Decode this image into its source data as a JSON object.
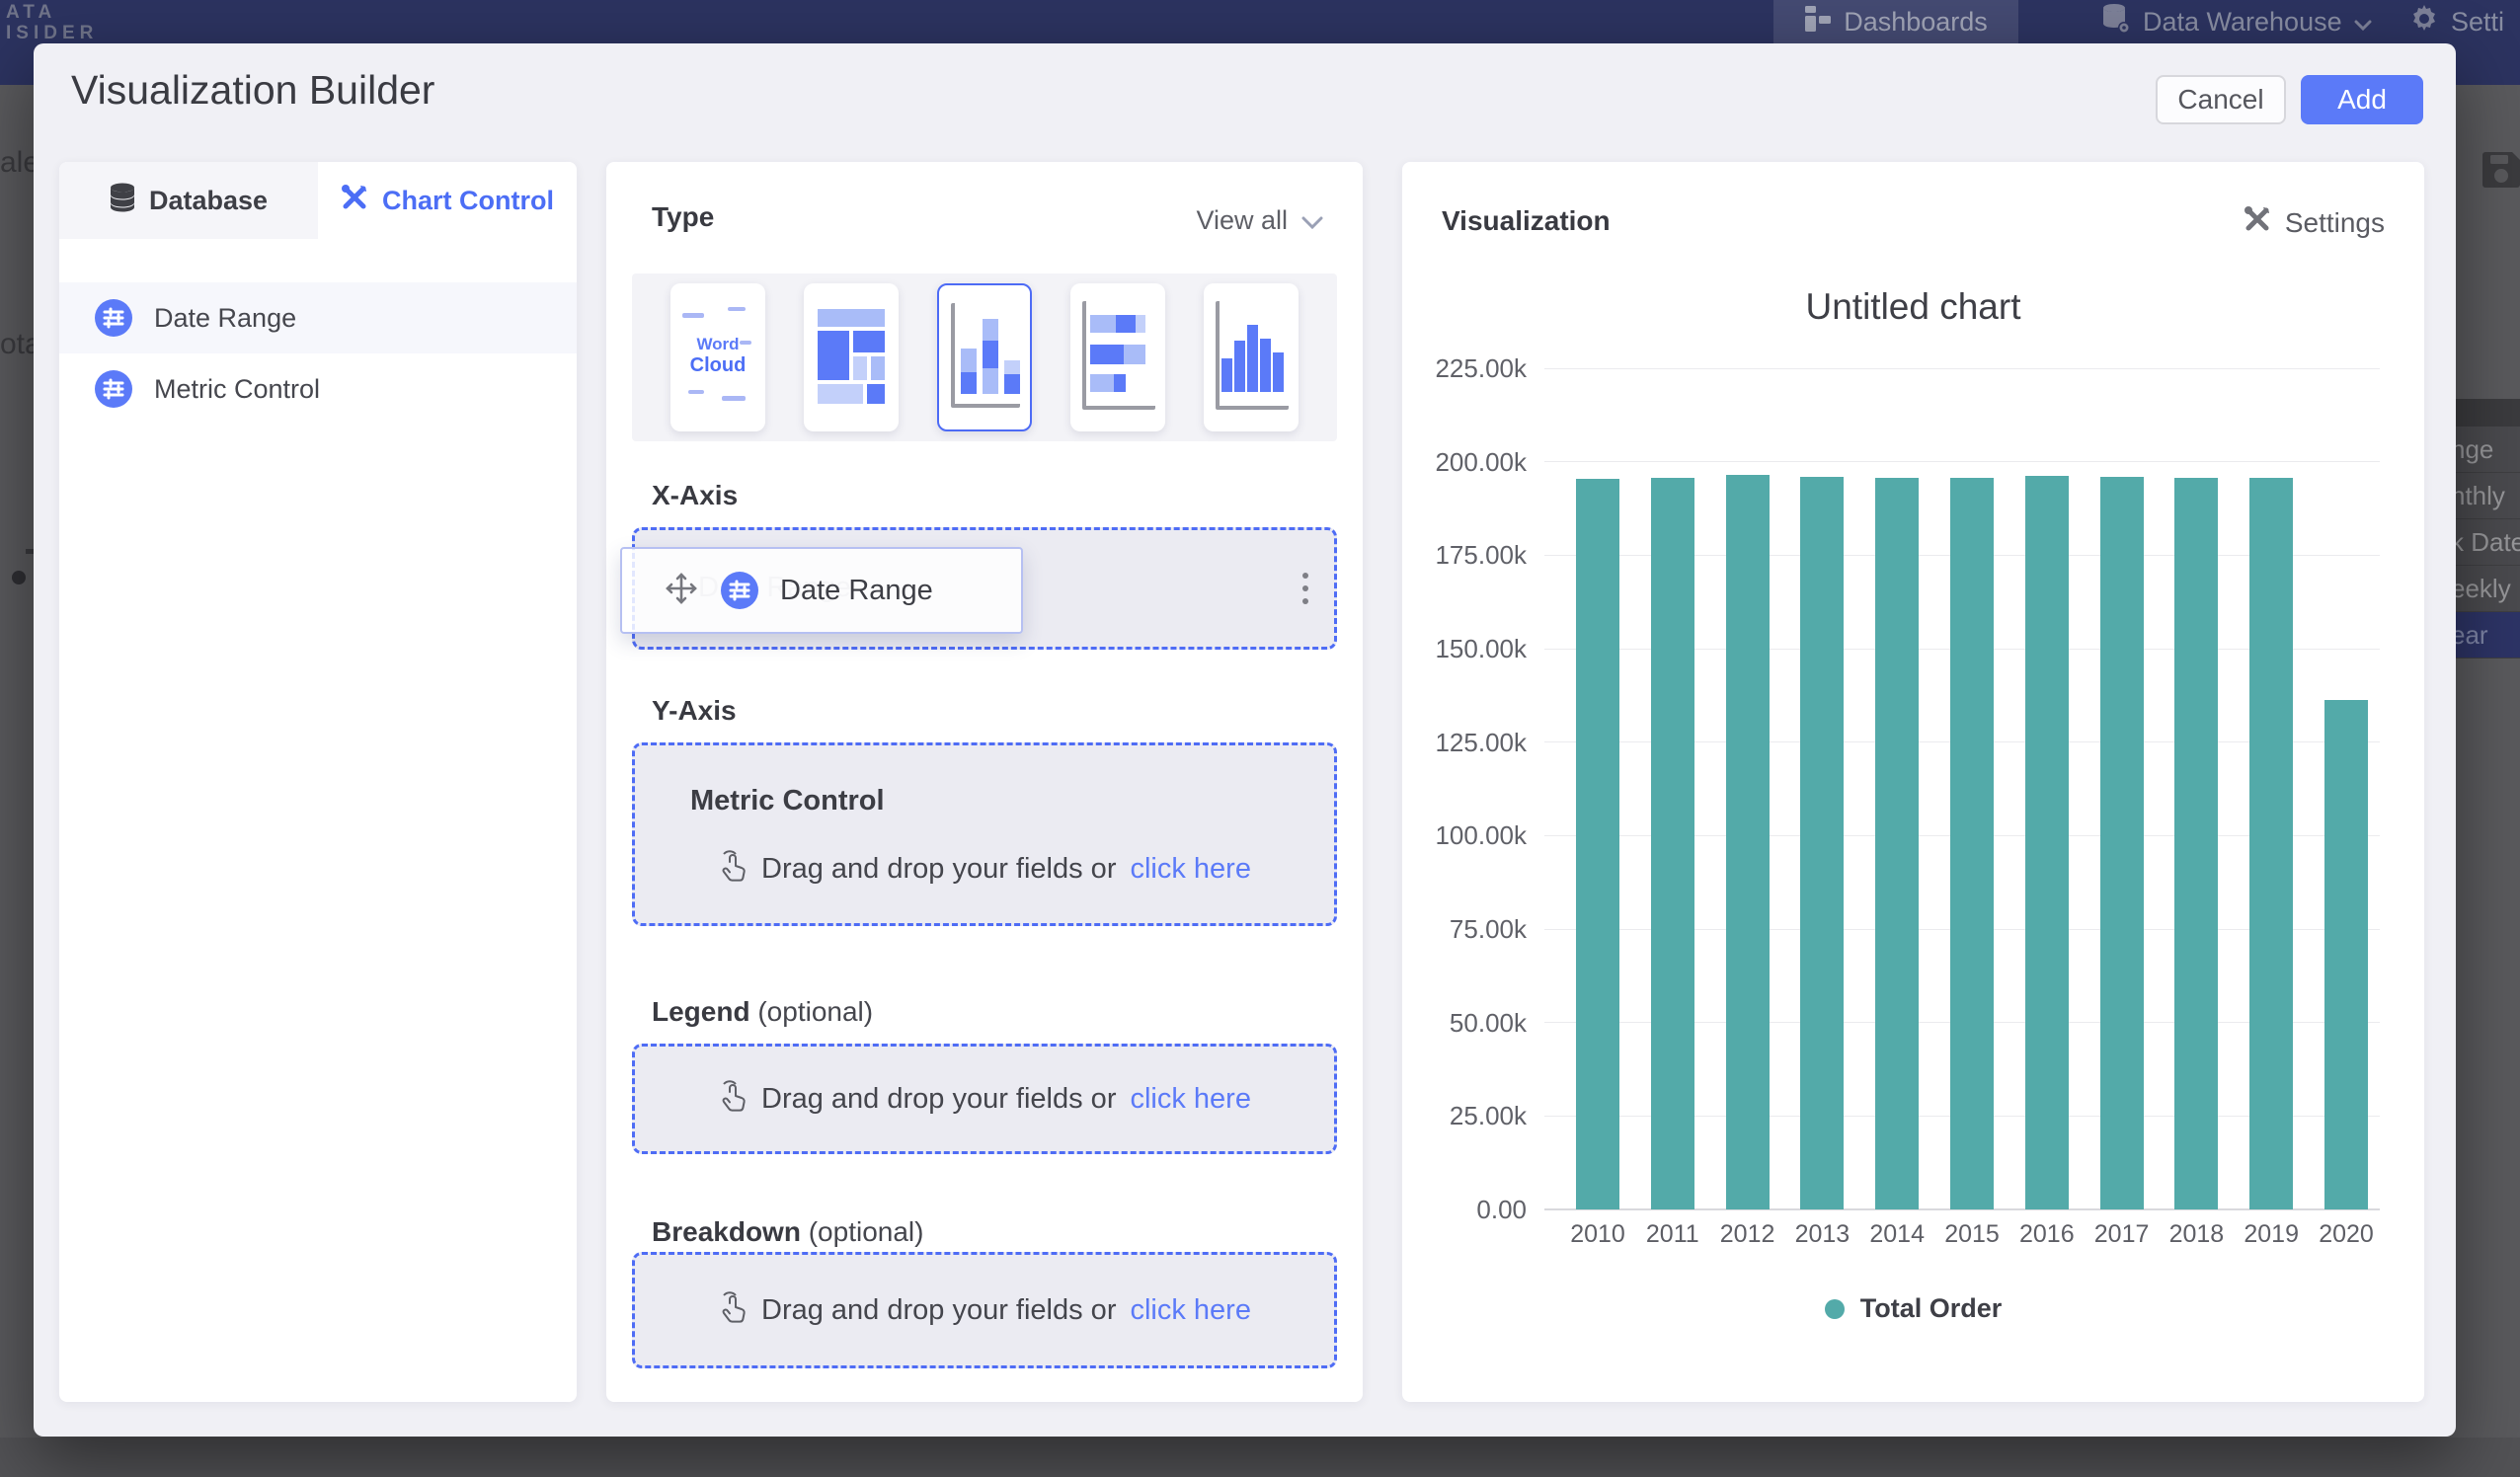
{
  "topbar": {
    "logo_line1": "ATA",
    "logo_line2": "ISIDER",
    "dashboards": "Dashboards",
    "data_warehouse": "Data Warehouse",
    "settings_fragment": "Setti"
  },
  "background_fragments": {
    "left1": "ale",
    "left2": "otal",
    "menu": [
      "nge",
      "nthly",
      "k Date",
      "eekly",
      "ear"
    ],
    "menu_selected_index": 4
  },
  "modal": {
    "title": "Visualization Builder",
    "cancel_label": "Cancel",
    "add_label": "Add"
  },
  "left_panel": {
    "tab_database": "Database",
    "tab_chart_control": "Chart Control",
    "fields": [
      {
        "label": "Date Range"
      },
      {
        "label": "Metric Control"
      }
    ]
  },
  "builder": {
    "type_label": "Type",
    "view_all_label": "View all",
    "chart_type_names": [
      "word-cloud",
      "treemap",
      "stacked-column",
      "stacked-bar",
      "column"
    ],
    "selected_type_index": 2,
    "word_cloud_word1": "Word",
    "word_cloud_word2": "Cloud",
    "x_axis_label": "X-Axis",
    "y_axis_label": "Y-Axis",
    "legend_label": "Legend",
    "breakdown_label": "Breakdown",
    "optional_suffix": "(optional)",
    "chip_label": "Date Range",
    "ghost_label": "Date Range",
    "metric_heading": "Metric Control",
    "drop_text": "Drag and drop your fields or",
    "click_here": "click here"
  },
  "visualization": {
    "header": "Visualization",
    "settings_label": "Settings"
  },
  "colors": {
    "accent_blue": "#4c6ef5",
    "add_button": "#5b7af8",
    "bar_teal": "#53aaa9",
    "topbar_navy": "#2c3360"
  },
  "chart_data": {
    "type": "bar",
    "title": "Untitled chart",
    "categories": [
      "2010",
      "2011",
      "2012",
      "2013",
      "2014",
      "2015",
      "2016",
      "2017",
      "2018",
      "2019",
      "2020"
    ],
    "series": [
      {
        "name": "Total Order",
        "values": [
          195500,
          195600,
          196400,
          195900,
          195600,
          195800,
          196300,
          195900,
          195600,
          195800,
          136200
        ]
      }
    ],
    "ylabel_ticks": [
      "225.00k",
      "200.00k",
      "175.00k",
      "150.00k",
      "125.00k",
      "100.00k",
      "75.00k",
      "50.00k",
      "25.00k",
      "0.00"
    ],
    "ylim": [
      0,
      225000
    ],
    "ytick_step": 25000,
    "grid": true,
    "bar_color": "#53aaa9",
    "legend_position": "bottom"
  }
}
